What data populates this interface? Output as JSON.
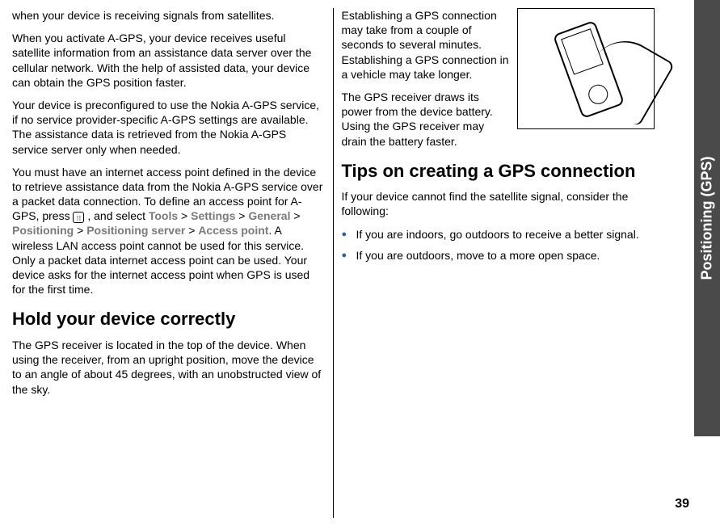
{
  "sideTab": "Positioning (GPS)",
  "pageNumber": "39",
  "left": {
    "p1": "when your device is receiving signals from satellites.",
    "p2": "When you activate A-GPS, your device receives useful satellite information from an assistance data server over the cellular network. With the help of assisted data, your device can obtain the GPS position faster.",
    "p3": "Your device is preconfigured to use the Nokia A-GPS service, if no service provider-specific A-GPS settings are available. The assistance data is retrieved from the Nokia A-GPS service server only when needed.",
    "p4a": "You must have an internet access point defined in the device to retrieve assistance data from the Nokia A-GPS service over a packet data connection. To define an access point for A-GPS, press ",
    "p4b": ", and select ",
    "crumb1": "Tools",
    "crumb2": "Settings",
    "crumb3": "General",
    "crumb4": "Positioning",
    "crumb5": "Positioning server",
    "crumb6": "Access point",
    "p4c": ". A wireless LAN access point cannot be used for this service. Only a packet data internet access point can be used. Your device asks for the internet access point when GPS is used for the first time.",
    "h1": "Hold your device correctly",
    "p5": "The GPS receiver is located in the top of the device. When using the receiver, from an upright position, move the device to an angle of about 45 degrees, with an unobstructed view of the sky."
  },
  "right": {
    "p1": "Establishing a GPS connection may take from a couple of seconds to several minutes. Establishing a GPS connection in a vehicle may take longer.",
    "p2": "The GPS receiver draws its power from the device battery. Using the GPS receiver may drain the battery faster.",
    "h1": "Tips on creating a GPS connection",
    "p3": "If your device cannot find the satellite signal, consider the following:",
    "li1": "If you are indoors, go outdoors to receive a better signal.",
    "li2": "If you are outdoors, move to a more open space."
  }
}
